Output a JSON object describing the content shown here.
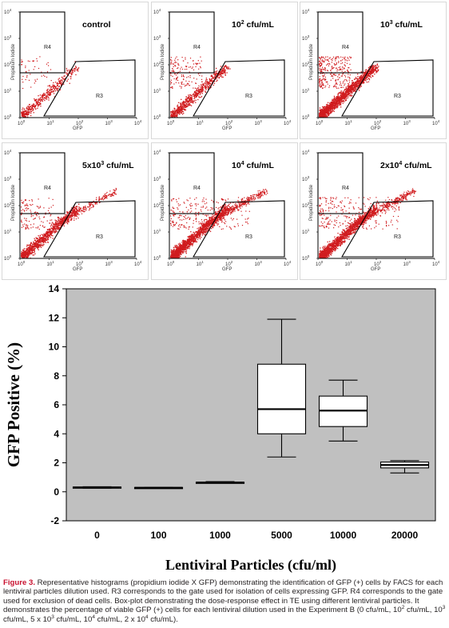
{
  "panels": [
    {
      "label": "control",
      "exp": "",
      "unit": ""
    },
    {
      "label": "10",
      "exp": "2",
      "unit": " cfu/mL"
    },
    {
      "label": "10",
      "exp": "3",
      "unit": " cfu/mL"
    },
    {
      "label": "5x10",
      "exp": "3",
      "unit": " cfu/mL"
    },
    {
      "label": "10",
      "exp": "4",
      "unit": " cfu/mL"
    },
    {
      "label": "2x10",
      "exp": "4",
      "unit": " cfu/mL"
    }
  ],
  "facs_axis": {
    "xlabel": "GFP",
    "ylabel": "Propidium Iodide",
    "ticks": [
      {
        "base": "10",
        "exp": "0"
      },
      {
        "base": "10",
        "exp": "1"
      },
      {
        "base": "10",
        "exp": "2"
      },
      {
        "base": "10",
        "exp": "3"
      },
      {
        "base": "10",
        "exp": "4"
      }
    ],
    "gate_r3": "R3",
    "gate_r4": "R4"
  },
  "chart_data": {
    "type": "box",
    "categories": [
      "0",
      "100",
      "1000",
      "5000",
      "10000",
      "20000"
    ],
    "boxes": [
      {
        "whisker_low": 0.25,
        "q1": 0.27,
        "median": 0.3,
        "q3": 0.33,
        "whisker_high": 0.35
      },
      {
        "whisker_low": 0.25,
        "q1": 0.26,
        "median": 0.28,
        "q3": 0.3,
        "whisker_high": 0.31
      },
      {
        "whisker_low": 0.6,
        "q1": 0.62,
        "median": 0.64,
        "q3": 0.66,
        "whisker_high": 0.7
      },
      {
        "whisker_low": 2.4,
        "q1": 4.0,
        "median": 5.7,
        "q3": 8.8,
        "whisker_high": 11.9
      },
      {
        "whisker_low": 3.5,
        "q1": 4.5,
        "median": 5.6,
        "q3": 6.6,
        "whisker_high": 7.7
      },
      {
        "whisker_low": 1.3,
        "q1": 1.65,
        "median": 1.85,
        "q3": 2.05,
        "whisker_high": 2.15
      }
    ],
    "ylim": [
      -2,
      14
    ],
    "yticks": [
      "-2",
      "0",
      "2",
      "4",
      "6",
      "8",
      "10",
      "12",
      "14"
    ],
    "ylabel": "GFP Positive (%)",
    "xlabel": "Lentiviral Particles (cfu/ml)",
    "plot_bg": "#c0c0c0"
  },
  "colors": {
    "dots": "#d01c1f",
    "gate": "#000000",
    "caption_head": "#c8102e"
  },
  "caption": {
    "head": "Figure 3.",
    "body": " Representative histograms (propidium iodide X GFP) demonstrating the identification of GFP (+) cells by FACS for each lentiviral particles dilution used. R3 corresponds to the gate used for isolation of cells expressing GFP. R4 corresponds to the gate used for exclusion of dead cells. Box-plot demonstrating the dose-response effect in TE using different lentiviral particles. It demonstrates the percentage of viable GFP (+) cells for each lentiviral dilution used in the Experiment B (0 cfu/mL, 10",
    "e1": "2",
    "t1": " cfu/mL, 10",
    "e2": "3",
    "t2": " cfu/mL, 5 x 10",
    "e3": "3",
    "t3": " cfu/mL, 10",
    "e4": "4",
    "t4": " cfu/mL, 2 x 10",
    "e5": "4",
    "t5": " cfu/mL)."
  }
}
